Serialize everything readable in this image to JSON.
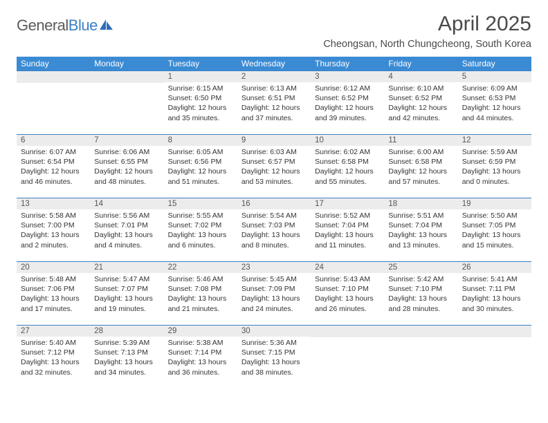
{
  "brand": {
    "name1": "General",
    "name2": "Blue"
  },
  "title": "April 2025",
  "location": "Cheongsan, North Chungcheong, South Korea",
  "colors": {
    "header_bg": "#3b8bd4",
    "header_text": "#ffffff",
    "rule": "#3b7fc4",
    "daynum_bg": "#ececec",
    "text": "#333333",
    "logo_gray": "#5a5a5a",
    "logo_blue": "#3b7fc4",
    "page_bg": "#ffffff"
  },
  "typography": {
    "title_fontsize": 30,
    "location_fontsize": 14.5,
    "weekday_fontsize": 12,
    "daynum_fontsize": 11.5,
    "body_fontsize": 10.5
  },
  "weekdays": [
    "Sunday",
    "Monday",
    "Tuesday",
    "Wednesday",
    "Thursday",
    "Friday",
    "Saturday"
  ],
  "leading_blanks": 2,
  "days": [
    {
      "n": 1,
      "sunrise": "6:15 AM",
      "sunset": "6:50 PM",
      "daylight": "12 hours and 35 minutes."
    },
    {
      "n": 2,
      "sunrise": "6:13 AM",
      "sunset": "6:51 PM",
      "daylight": "12 hours and 37 minutes."
    },
    {
      "n": 3,
      "sunrise": "6:12 AM",
      "sunset": "6:52 PM",
      "daylight": "12 hours and 39 minutes."
    },
    {
      "n": 4,
      "sunrise": "6:10 AM",
      "sunset": "6:52 PM",
      "daylight": "12 hours and 42 minutes."
    },
    {
      "n": 5,
      "sunrise": "6:09 AM",
      "sunset": "6:53 PM",
      "daylight": "12 hours and 44 minutes."
    },
    {
      "n": 6,
      "sunrise": "6:07 AM",
      "sunset": "6:54 PM",
      "daylight": "12 hours and 46 minutes."
    },
    {
      "n": 7,
      "sunrise": "6:06 AM",
      "sunset": "6:55 PM",
      "daylight": "12 hours and 48 minutes."
    },
    {
      "n": 8,
      "sunrise": "6:05 AM",
      "sunset": "6:56 PM",
      "daylight": "12 hours and 51 minutes."
    },
    {
      "n": 9,
      "sunrise": "6:03 AM",
      "sunset": "6:57 PM",
      "daylight": "12 hours and 53 minutes."
    },
    {
      "n": 10,
      "sunrise": "6:02 AM",
      "sunset": "6:58 PM",
      "daylight": "12 hours and 55 minutes."
    },
    {
      "n": 11,
      "sunrise": "6:00 AM",
      "sunset": "6:58 PM",
      "daylight": "12 hours and 57 minutes."
    },
    {
      "n": 12,
      "sunrise": "5:59 AM",
      "sunset": "6:59 PM",
      "daylight": "13 hours and 0 minutes."
    },
    {
      "n": 13,
      "sunrise": "5:58 AM",
      "sunset": "7:00 PM",
      "daylight": "13 hours and 2 minutes."
    },
    {
      "n": 14,
      "sunrise": "5:56 AM",
      "sunset": "7:01 PM",
      "daylight": "13 hours and 4 minutes."
    },
    {
      "n": 15,
      "sunrise": "5:55 AM",
      "sunset": "7:02 PM",
      "daylight": "13 hours and 6 minutes."
    },
    {
      "n": 16,
      "sunrise": "5:54 AM",
      "sunset": "7:03 PM",
      "daylight": "13 hours and 8 minutes."
    },
    {
      "n": 17,
      "sunrise": "5:52 AM",
      "sunset": "7:04 PM",
      "daylight": "13 hours and 11 minutes."
    },
    {
      "n": 18,
      "sunrise": "5:51 AM",
      "sunset": "7:04 PM",
      "daylight": "13 hours and 13 minutes."
    },
    {
      "n": 19,
      "sunrise": "5:50 AM",
      "sunset": "7:05 PM",
      "daylight": "13 hours and 15 minutes."
    },
    {
      "n": 20,
      "sunrise": "5:48 AM",
      "sunset": "7:06 PM",
      "daylight": "13 hours and 17 minutes."
    },
    {
      "n": 21,
      "sunrise": "5:47 AM",
      "sunset": "7:07 PM",
      "daylight": "13 hours and 19 minutes."
    },
    {
      "n": 22,
      "sunrise": "5:46 AM",
      "sunset": "7:08 PM",
      "daylight": "13 hours and 21 minutes."
    },
    {
      "n": 23,
      "sunrise": "5:45 AM",
      "sunset": "7:09 PM",
      "daylight": "13 hours and 24 minutes."
    },
    {
      "n": 24,
      "sunrise": "5:43 AM",
      "sunset": "7:10 PM",
      "daylight": "13 hours and 26 minutes."
    },
    {
      "n": 25,
      "sunrise": "5:42 AM",
      "sunset": "7:10 PM",
      "daylight": "13 hours and 28 minutes."
    },
    {
      "n": 26,
      "sunrise": "5:41 AM",
      "sunset": "7:11 PM",
      "daylight": "13 hours and 30 minutes."
    },
    {
      "n": 27,
      "sunrise": "5:40 AM",
      "sunset": "7:12 PM",
      "daylight": "13 hours and 32 minutes."
    },
    {
      "n": 28,
      "sunrise": "5:39 AM",
      "sunset": "7:13 PM",
      "daylight": "13 hours and 34 minutes."
    },
    {
      "n": 29,
      "sunrise": "5:38 AM",
      "sunset": "7:14 PM",
      "daylight": "13 hours and 36 minutes."
    },
    {
      "n": 30,
      "sunrise": "5:36 AM",
      "sunset": "7:15 PM",
      "daylight": "13 hours and 38 minutes."
    }
  ],
  "labels": {
    "sunrise": "Sunrise: ",
    "sunset": "Sunset: ",
    "daylight": "Daylight: "
  }
}
